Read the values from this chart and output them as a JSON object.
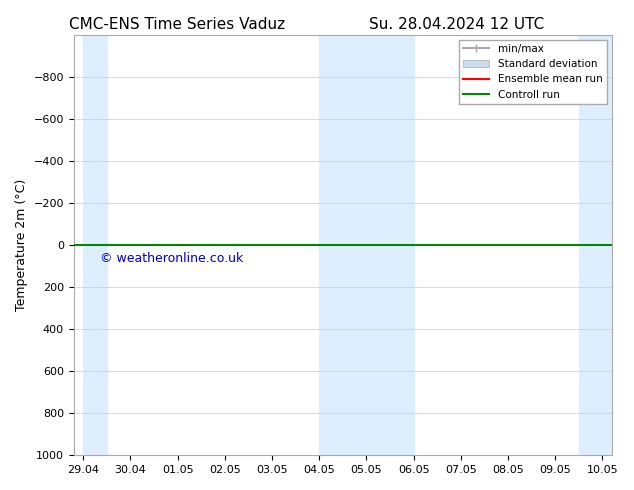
{
  "title_left": "CMC-ENS Time Series Vaduz",
  "title_right": "Su. 28.04.2024 12 UTC",
  "ylabel": "Temperature 2m (°C)",
  "xlabel": "",
  "xtick_labels": [
    "29.04",
    "30.04",
    "01.05",
    "02.05",
    "03.05",
    "04.05",
    "05.05",
    "06.05",
    "07.05",
    "08.05",
    "09.05",
    "10.05"
  ],
  "ylim": [
    -1000,
    1000
  ],
  "yticks": [
    -800,
    -600,
    -400,
    -200,
    0,
    200,
    400,
    600,
    800,
    1000
  ],
  "background_color": "#ffffff",
  "plot_bg_color": "#ffffff",
  "shaded_band_color": "#ddeeff",
  "green_line_y": 0,
  "watermark": "© weatheronline.co.uk",
  "watermark_color": "#0000cc",
  "legend_items": [
    {
      "label": "min/max",
      "color": "#aaaaaa",
      "lw": 1.5
    },
    {
      "label": "Standard deviation",
      "color": "#ccddee",
      "lw": 8
    },
    {
      "label": "Ensemble mean run",
      "color": "#ff0000",
      "lw": 1.5
    },
    {
      "label": "Controll run",
      "color": "#008800",
      "lw": 1.5
    }
  ],
  "font_family": "DejaVu Sans",
  "title_fontsize": 11,
  "axis_fontsize": 9,
  "tick_fontsize": 8,
  "shaded_ranges": [
    [
      0,
      0.5
    ],
    [
      5.0,
      7.0
    ],
    [
      10.5,
      11.5
    ]
  ]
}
